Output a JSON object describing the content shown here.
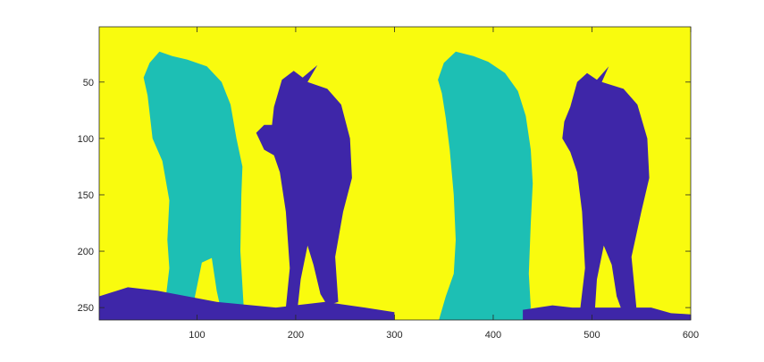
{
  "chart_data": {
    "type": "heatmap",
    "title": "",
    "xlabel": "",
    "ylabel": "",
    "xlim": [
      1,
      600
    ],
    "ylim": [
      1,
      261
    ],
    "y_direction": "reverse",
    "x_ticks": [
      100,
      200,
      300,
      400,
      500,
      600
    ],
    "x_tick_labels": [
      "100",
      "200",
      "300",
      "400",
      "500",
      "600"
    ],
    "y_ticks": [
      50,
      100,
      150,
      200,
      250
    ],
    "y_tick_labels": [
      "50",
      "100",
      "150",
      "200",
      "250"
    ],
    "grid": false,
    "legend": "none",
    "colormap": "parula",
    "class_colors": {
      "background": "#F9FB0E",
      "teal_region": "#1DBFB4",
      "navy_region": "#3E26A8"
    },
    "regions": [
      {
        "name": "teal_region",
        "color": "#1DBFB4",
        "polygon": [
          [
            50,
            62
          ],
          [
            46,
            46
          ],
          [
            52,
            33
          ],
          [
            62,
            23
          ],
          [
            75,
            27
          ],
          [
            90,
            30
          ],
          [
            110,
            36
          ],
          [
            125,
            50
          ],
          [
            134,
            70
          ],
          [
            140,
            100
          ],
          [
            146,
            125
          ],
          [
            145,
            150
          ],
          [
            144,
            200
          ],
          [
            148,
            260
          ],
          [
            134,
            261
          ],
          [
            125,
            255
          ],
          [
            120,
            235
          ],
          [
            115,
            206
          ],
          [
            105,
            210
          ],
          [
            98,
            240
          ],
          [
            96,
            261
          ],
          [
            55,
            261
          ],
          [
            68,
            245
          ],
          [
            72,
            215
          ],
          [
            70,
            190
          ],
          [
            72,
            155
          ],
          [
            65,
            120
          ],
          [
            55,
            100
          ]
        ]
      },
      {
        "name": "navy_region",
        "color": "#3E26A8",
        "polygon": [
          [
            178,
            72
          ],
          [
            186,
            48
          ],
          [
            198,
            40
          ],
          [
            207,
            46
          ],
          [
            222,
            35
          ],
          [
            212,
            50
          ],
          [
            232,
            56
          ],
          [
            246,
            70
          ],
          [
            255,
            100
          ],
          [
            257,
            135
          ],
          [
            248,
            165
          ],
          [
            240,
            205
          ],
          [
            243,
            245
          ],
          [
            232,
            248
          ],
          [
            225,
            238
          ],
          [
            218,
            212
          ],
          [
            212,
            195
          ],
          [
            205,
            225
          ],
          [
            202,
            250
          ],
          [
            190,
            250
          ],
          [
            194,
            215
          ],
          [
            190,
            165
          ],
          [
            184,
            130
          ],
          [
            178,
            115
          ],
          [
            168,
            110
          ],
          [
            160,
            95
          ],
          [
            168,
            88
          ],
          [
            176,
            88
          ]
        ]
      },
      {
        "name": "navy_region",
        "color": "#3E26A8",
        "polygon": [
          [
            1,
            240
          ],
          [
            30,
            232
          ],
          [
            60,
            235
          ],
          [
            120,
            245
          ],
          [
            180,
            250
          ],
          [
            230,
            245
          ],
          [
            270,
            250
          ],
          [
            300,
            254
          ],
          [
            300,
            261
          ],
          [
            1,
            261
          ]
        ]
      },
      {
        "name": "teal_region",
        "color": "#1DBFB4",
        "polygon": [
          [
            348,
            60
          ],
          [
            344,
            48
          ],
          [
            350,
            33
          ],
          [
            362,
            23
          ],
          [
            380,
            27
          ],
          [
            395,
            32
          ],
          [
            412,
            42
          ],
          [
            425,
            58
          ],
          [
            433,
            80
          ],
          [
            438,
            110
          ],
          [
            440,
            140
          ],
          [
            438,
            175
          ],
          [
            436,
            220
          ],
          [
            438,
            250
          ],
          [
            432,
            261
          ],
          [
            345,
            261
          ],
          [
            352,
            240
          ],
          [
            360,
            220
          ],
          [
            362,
            190
          ],
          [
            360,
            150
          ],
          [
            356,
            110
          ],
          [
            352,
            82
          ]
        ]
      },
      {
        "name": "navy_region",
        "color": "#3E26A8",
        "polygon": [
          [
            478,
            72
          ],
          [
            485,
            50
          ],
          [
            495,
            42
          ],
          [
            505,
            48
          ],
          [
            517,
            36
          ],
          [
            510,
            50
          ],
          [
            532,
            56
          ],
          [
            546,
            70
          ],
          [
            556,
            100
          ],
          [
            558,
            135
          ],
          [
            550,
            165
          ],
          [
            540,
            205
          ],
          [
            545,
            250
          ],
          [
            530,
            252
          ],
          [
            525,
            240
          ],
          [
            520,
            212
          ],
          [
            512,
            195
          ],
          [
            505,
            225
          ],
          [
            503,
            252
          ],
          [
            488,
            252
          ],
          [
            493,
            215
          ],
          [
            490,
            165
          ],
          [
            485,
            130
          ],
          [
            478,
            112
          ],
          [
            470,
            100
          ],
          [
            472,
            85
          ]
        ]
      },
      {
        "name": "navy_region",
        "color": "#3E26A8",
        "polygon": [
          [
            430,
            252
          ],
          [
            460,
            248
          ],
          [
            480,
            250
          ],
          [
            560,
            250
          ],
          [
            580,
            255
          ],
          [
            600,
            256
          ],
          [
            600,
            261
          ],
          [
            430,
            261
          ]
        ]
      }
    ]
  }
}
